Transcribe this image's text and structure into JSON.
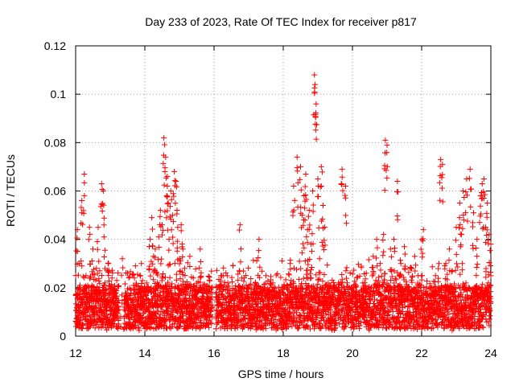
{
  "chart_data": {
    "type": "scatter",
    "title": "Day 233 of 2023, Rate Of TEC Index for receiver p817",
    "xlabel": "GPS time / hours",
    "ylabel": "ROTI / TECUs",
    "xlim": [
      12,
      24
    ],
    "ylim": [
      0,
      0.12
    ],
    "xticks": [
      12,
      14,
      16,
      18,
      20,
      22,
      24
    ],
    "xtick_labels": [
      "12",
      "14",
      "16",
      "18",
      "20",
      "22",
      "24"
    ],
    "yticks": [
      0,
      0.02,
      0.04,
      0.06,
      0.08,
      0.1,
      0.12
    ],
    "ytick_labels": [
      "0",
      "0.02",
      "0.04",
      "0.06",
      "0.08",
      "0.1",
      "0.12"
    ],
    "grid": true,
    "marker": "+",
    "color": "#ff0000",
    "series": [
      {
        "name": "ROTI",
        "x": [
          12.05,
          12.1,
          12.12,
          12.18,
          12.25,
          12.3,
          12.33,
          12.4,
          12.45,
          12.5,
          12.55,
          12.6,
          12.65,
          12.7,
          12.75,
          12.8,
          12.82,
          12.85,
          12.9,
          12.95,
          13.0,
          13.05,
          13.1,
          13.15,
          13.2,
          13.3,
          13.35,
          13.4,
          13.5,
          13.6,
          13.7,
          13.8,
          13.85,
          13.9,
          14.0,
          14.05,
          14.1,
          14.15,
          14.2,
          14.25,
          14.3,
          14.35,
          14.4,
          14.45,
          14.5,
          14.55,
          14.6,
          14.63,
          14.65,
          14.7,
          14.75,
          14.8,
          14.85,
          14.9,
          14.95,
          15.0,
          15.05,
          15.1,
          15.15,
          15.2,
          15.3,
          15.4,
          15.5,
          15.6,
          15.7,
          15.8,
          15.85,
          16.1,
          16.2,
          16.3,
          16.4,
          16.5,
          16.6,
          16.7,
          16.75,
          16.8,
          16.9,
          17.0,
          17.2,
          17.3,
          17.4,
          17.5,
          17.6,
          17.7,
          17.8,
          17.9,
          18.0,
          18.1,
          18.2,
          18.3,
          18.4,
          18.5,
          18.55,
          18.6,
          18.65,
          18.7,
          18.75,
          18.8,
          18.85,
          18.9,
          18.92,
          18.95,
          19.0,
          19.05,
          19.1,
          19.15,
          19.2,
          19.3,
          19.4,
          19.5,
          19.6,
          19.7,
          19.8,
          19.9,
          20.0,
          20.1,
          20.2,
          20.3,
          20.4,
          20.5,
          20.6,
          20.7,
          20.8,
          20.9,
          20.95,
          21.0,
          21.1,
          21.2,
          21.3,
          21.35,
          21.4,
          21.5,
          21.6,
          21.7,
          21.8,
          21.9,
          22.0,
          22.05,
          22.3,
          22.4,
          22.5,
          22.55,
          22.6,
          22.7,
          22.8,
          22.9,
          23.0,
          23.1,
          23.15,
          23.2,
          23.3,
          23.4,
          23.5,
          23.6,
          23.7,
          23.75,
          23.8,
          23.85,
          23.9,
          23.95,
          24.0
        ],
        "y": [
          0.044,
          0.03,
          0.012,
          0.056,
          0.067,
          0.025,
          0.015,
          0.045,
          0.02,
          0.036,
          0.01,
          0.028,
          0.045,
          0.018,
          0.063,
          0.06,
          0.041,
          0.022,
          0.012,
          0.03,
          0.015,
          0.024,
          0.01,
          0.018,
          0.012,
          0.008,
          0.032,
          0.012,
          0.015,
          0.01,
          0.024,
          0.009,
          0.012,
          0.03,
          0.01,
          0.022,
          0.015,
          0.04,
          0.049,
          0.033,
          0.036,
          0.026,
          0.041,
          0.052,
          0.046,
          0.082,
          0.074,
          0.058,
          0.066,
          0.04,
          0.06,
          0.05,
          0.068,
          0.064,
          0.045,
          0.032,
          0.046,
          0.036,
          0.028,
          0.02,
          0.033,
          0.024,
          0.018,
          0.036,
          0.021,
          0.015,
          0.01,
          0.015,
          0.025,
          0.01,
          0.022,
          0.012,
          0.018,
          0.008,
          0.046,
          0.024,
          0.014,
          0.02,
          0.022,
          0.04,
          0.015,
          0.025,
          0.01,
          0.022,
          0.012,
          0.018,
          0.01,
          0.02,
          0.03,
          0.062,
          0.074,
          0.07,
          0.05,
          0.058,
          0.067,
          0.044,
          0.052,
          0.038,
          0.06,
          0.108,
          0.104,
          0.096,
          0.065,
          0.032,
          0.07,
          0.054,
          0.045,
          0.022,
          0.018,
          0.012,
          0.02,
          0.069,
          0.062,
          0.015,
          0.02,
          0.012,
          0.018,
          0.022,
          0.026,
          0.012,
          0.033,
          0.04,
          0.03,
          0.042,
          0.081,
          0.079,
          0.036,
          0.04,
          0.064,
          0.025,
          0.03,
          0.037,
          0.02,
          0.028,
          0.033,
          0.025,
          0.04,
          0.044,
          0.018,
          0.025,
          0.03,
          0.073,
          0.071,
          0.03,
          0.036,
          0.02,
          0.045,
          0.055,
          0.042,
          0.06,
          0.065,
          0.069,
          0.051,
          0.04,
          0.058,
          0.063,
          0.065,
          0.045,
          0.055,
          0.042,
          0.038
        ],
        "bulk_note_values": "dense floor of points mostly between 0.003 and 0.025 from 12 to 24 h with gaps near 13.3 and 16.0"
      }
    ]
  }
}
